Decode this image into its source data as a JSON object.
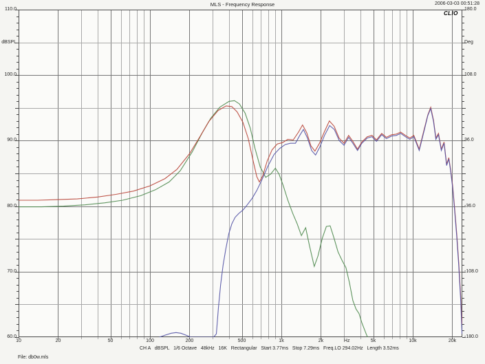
{
  "header": {
    "title": "MLS - Frequency Response",
    "timestamp": "2006-03-03 00:51:28"
  },
  "branding": {
    "logo": "CLIO"
  },
  "footer": {
    "settings": "CH A   dBSPL   1/6 Octave   48kHz   16K   Rectangular   Start 3.77ms   Stop 7.29ms   Freq.LO 294.02Hz   Length 3.52ms",
    "file": "File: db0w.mls"
  },
  "axes": {
    "left": {
      "unit": "dBSPL",
      "labels": [
        {
          "text": "110.0",
          "db": 110
        },
        {
          "text": "dBSPL",
          "db": 105
        },
        {
          "text": "100.0",
          "db": 100
        },
        {
          "text": "90.0",
          "db": 90
        },
        {
          "text": "80.0",
          "db": 80
        },
        {
          "text": "70.0",
          "db": 70
        },
        {
          "text": "60.0",
          "db": 60
        }
      ]
    },
    "right": {
      "unit": "Deg",
      "labels": [
        {
          "text": "180.0",
          "db": 110
        },
        {
          "text": "Deg",
          "db": 105
        },
        {
          "text": "108.0",
          "db": 100
        },
        {
          "text": "36.0",
          "db": 90
        },
        {
          "text": "-36.0",
          "db": 80
        },
        {
          "text": "-108.0",
          "db": 70
        },
        {
          "text": "-180.0",
          "db": 60
        }
      ]
    },
    "bottom": {
      "unit": "Hz",
      "labels": [
        {
          "text": "10",
          "f": 10
        },
        {
          "text": "20",
          "f": 20
        },
        {
          "text": "50",
          "f": 50
        },
        {
          "text": "100",
          "f": 100
        },
        {
          "text": "200",
          "f": 200
        },
        {
          "text": "500",
          "f": 500
        },
        {
          "text": "1k",
          "f": 1000
        },
        {
          "text": "2k",
          "f": 2000
        },
        {
          "text": "Hz",
          "f": 3150
        },
        {
          "text": "5k",
          "f": 5000
        },
        {
          "text": "10k",
          "f": 10000
        },
        {
          "text": "20k",
          "f": 20000
        }
      ]
    }
  },
  "colors": {
    "red_trace": "#b9453a",
    "green_trace": "#4f8a4f",
    "blue_trace": "#5352a5",
    "grid_major": "#767676",
    "grid_minor": "#a8a8a8",
    "border": "#4a4a4a",
    "plot_bg": "#fbfbf9"
  },
  "chart_data": {
    "type": "line",
    "title": "MLS - Frequency Response",
    "x_axis": {
      "label": "Hz",
      "scale": "log",
      "range": [
        10,
        20000
      ]
    },
    "y_axis_left": {
      "label": "dBSPL",
      "range": [
        60,
        110
      ],
      "gridline_step": 5,
      "label_step": 10
    },
    "y_axis_right": {
      "label": "Deg",
      "range": [
        -180,
        180
      ],
      "label_step": 72
    },
    "grid": true,
    "legend": "none",
    "series": [
      {
        "name": "green-trace",
        "color": "#4f8a4f",
        "points": [
          [
            10,
            79.9
          ],
          [
            15,
            79.9
          ],
          [
            22,
            80.0
          ],
          [
            32,
            80.2
          ],
          [
            45,
            80.5
          ],
          [
            62,
            80.9
          ],
          [
            85,
            81.6
          ],
          [
            110,
            82.5
          ],
          [
            140,
            83.7
          ],
          [
            170,
            85.4
          ],
          [
            210,
            88.3
          ],
          [
            250,
            91.2
          ],
          [
            290,
            93.4
          ],
          [
            340,
            95.1
          ],
          [
            400,
            96.0
          ],
          [
            440,
            96.1
          ],
          [
            480,
            95.6
          ],
          [
            530,
            94.2
          ],
          [
            580,
            91.9
          ],
          [
            630,
            88.8
          ],
          [
            690,
            86.0
          ],
          [
            760,
            84.4
          ],
          [
            830,
            84.9
          ],
          [
            900,
            85.8
          ],
          [
            960,
            84.9
          ],
          [
            1030,
            83.2
          ],
          [
            1120,
            80.9
          ],
          [
            1220,
            78.9
          ],
          [
            1320,
            77.3
          ],
          [
            1420,
            75.5
          ],
          [
            1530,
            76.7
          ],
          [
            1640,
            73.9
          ],
          [
            1780,
            70.8
          ],
          [
            1900,
            72.4
          ],
          [
            2050,
            75.1
          ],
          [
            2200,
            76.9
          ],
          [
            2350,
            77.0
          ],
          [
            2500,
            75.3
          ],
          [
            2700,
            73.0
          ],
          [
            2900,
            71.7
          ],
          [
            3100,
            70.6
          ],
          [
            3300,
            68.3
          ],
          [
            3500,
            65.6
          ],
          [
            3700,
            64.3
          ],
          [
            3900,
            63.6
          ],
          [
            4100,
            62.2
          ],
          [
            4400,
            60.6
          ],
          [
            4700,
            59.2
          ]
        ]
      },
      {
        "name": "red-trace",
        "color": "#b9453a",
        "points": [
          [
            10,
            80.9
          ],
          [
            14,
            80.9
          ],
          [
            20,
            81.0
          ],
          [
            28,
            81.1
          ],
          [
            40,
            81.4
          ],
          [
            55,
            81.8
          ],
          [
            75,
            82.3
          ],
          [
            100,
            83.1
          ],
          [
            130,
            84.2
          ],
          [
            160,
            85.6
          ],
          [
            200,
            88.0
          ],
          [
            240,
            90.6
          ],
          [
            280,
            92.9
          ],
          [
            330,
            94.6
          ],
          [
            380,
            95.3
          ],
          [
            420,
            95.2
          ],
          [
            460,
            94.4
          ],
          [
            510,
            92.8
          ],
          [
            560,
            90.3
          ],
          [
            610,
            86.9
          ],
          [
            650,
            84.5
          ],
          [
            680,
            83.7
          ],
          [
            720,
            84.6
          ],
          [
            780,
            86.9
          ],
          [
            850,
            88.6
          ],
          [
            930,
            89.5
          ],
          [
            1020,
            89.7
          ],
          [
            1120,
            90.2
          ],
          [
            1230,
            90.1
          ],
          [
            1350,
            91.3
          ],
          [
            1450,
            92.4
          ],
          [
            1560,
            91.2
          ],
          [
            1680,
            89.2
          ],
          [
            1800,
            88.4
          ],
          [
            1950,
            89.6
          ],
          [
            2120,
            91.3
          ],
          [
            2320,
            93.0
          ],
          [
            2520,
            92.2
          ],
          [
            2750,
            90.4
          ],
          [
            3000,
            89.6
          ],
          [
            3250,
            90.8
          ],
          [
            3500,
            89.9
          ],
          [
            3800,
            88.7
          ],
          [
            4100,
            89.8
          ],
          [
            4500,
            90.6
          ],
          [
            4900,
            90.8
          ],
          [
            5300,
            90.1
          ],
          [
            5800,
            91.1
          ],
          [
            6300,
            90.5
          ],
          [
            6900,
            90.9
          ],
          [
            7500,
            91.0
          ],
          [
            8100,
            91.3
          ],
          [
            8800,
            90.8
          ],
          [
            9500,
            90.4
          ],
          [
            10200,
            90.8
          ],
          [
            11200,
            88.7
          ],
          [
            12200,
            91.7
          ],
          [
            13000,
            93.9
          ],
          [
            13700,
            95.1
          ],
          [
            14400,
            93.1
          ],
          [
            15000,
            90.4
          ],
          [
            15700,
            91.1
          ],
          [
            16500,
            88.7
          ],
          [
            17300,
            89.8
          ],
          [
            18100,
            86.4
          ],
          [
            18800,
            87.4
          ],
          [
            19400,
            85.6
          ],
          [
            20100,
            83.2
          ],
          [
            20800,
            79.8
          ],
          [
            21600,
            75.8
          ],
          [
            22400,
            71.3
          ],
          [
            23200,
            66.0
          ],
          [
            23700,
            62.0
          ]
        ]
      },
      {
        "name": "blue-trace",
        "color": "#5352a5",
        "points": [
          [
            118,
            60.0
          ],
          [
            130,
            60.3
          ],
          [
            145,
            60.6
          ],
          [
            158,
            60.7
          ],
          [
            172,
            60.6
          ],
          [
            188,
            60.3
          ],
          [
            205,
            60.0
          ],
          [
            305,
            60.0
          ],
          [
            320,
            60.5
          ],
          [
            332,
            64.5
          ],
          [
            345,
            68.0
          ],
          [
            360,
            71.0
          ],
          [
            378,
            73.5
          ],
          [
            398,
            75.8
          ],
          [
            420,
            77.3
          ],
          [
            445,
            78.3
          ],
          [
            475,
            78.9
          ],
          [
            510,
            79.4
          ],
          [
            550,
            80.2
          ],
          [
            600,
            81.2
          ],
          [
            650,
            82.4
          ],
          [
            710,
            84.0
          ],
          [
            790,
            86.1
          ],
          [
            880,
            87.9
          ],
          [
            970,
            88.8
          ],
          [
            1070,
            89.4
          ],
          [
            1170,
            89.6
          ],
          [
            1280,
            89.6
          ],
          [
            1380,
            90.8
          ],
          [
            1470,
            91.7
          ],
          [
            1580,
            90.4
          ],
          [
            1700,
            88.5
          ],
          [
            1820,
            87.8
          ],
          [
            1960,
            89.0
          ],
          [
            2130,
            90.8
          ],
          [
            2330,
            92.3
          ],
          [
            2530,
            91.7
          ],
          [
            2760,
            90.0
          ],
          [
            3000,
            89.3
          ],
          [
            3250,
            90.5
          ],
          [
            3500,
            89.6
          ],
          [
            3800,
            88.5
          ],
          [
            4100,
            89.6
          ],
          [
            4500,
            90.4
          ],
          [
            4900,
            90.6
          ],
          [
            5300,
            89.9
          ],
          [
            5800,
            90.9
          ],
          [
            6300,
            90.3
          ],
          [
            6900,
            90.7
          ],
          [
            7500,
            90.8
          ],
          [
            8100,
            91.1
          ],
          [
            8800,
            90.6
          ],
          [
            9500,
            90.2
          ],
          [
            10200,
            90.6
          ],
          [
            11200,
            88.5
          ],
          [
            12200,
            91.5
          ],
          [
            13000,
            93.8
          ],
          [
            13700,
            94.9
          ],
          [
            14400,
            92.9
          ],
          [
            15000,
            90.2
          ],
          [
            15700,
            90.9
          ],
          [
            16500,
            88.5
          ],
          [
            17300,
            89.6
          ],
          [
            18100,
            86.2
          ],
          [
            18800,
            87.2
          ],
          [
            19400,
            85.4
          ],
          [
            20100,
            82.9
          ],
          [
            20800,
            79.4
          ],
          [
            21600,
            75.4
          ],
          [
            22400,
            70.8
          ],
          [
            23200,
            65.3
          ],
          [
            23700,
            60.5
          ]
        ]
      }
    ]
  }
}
